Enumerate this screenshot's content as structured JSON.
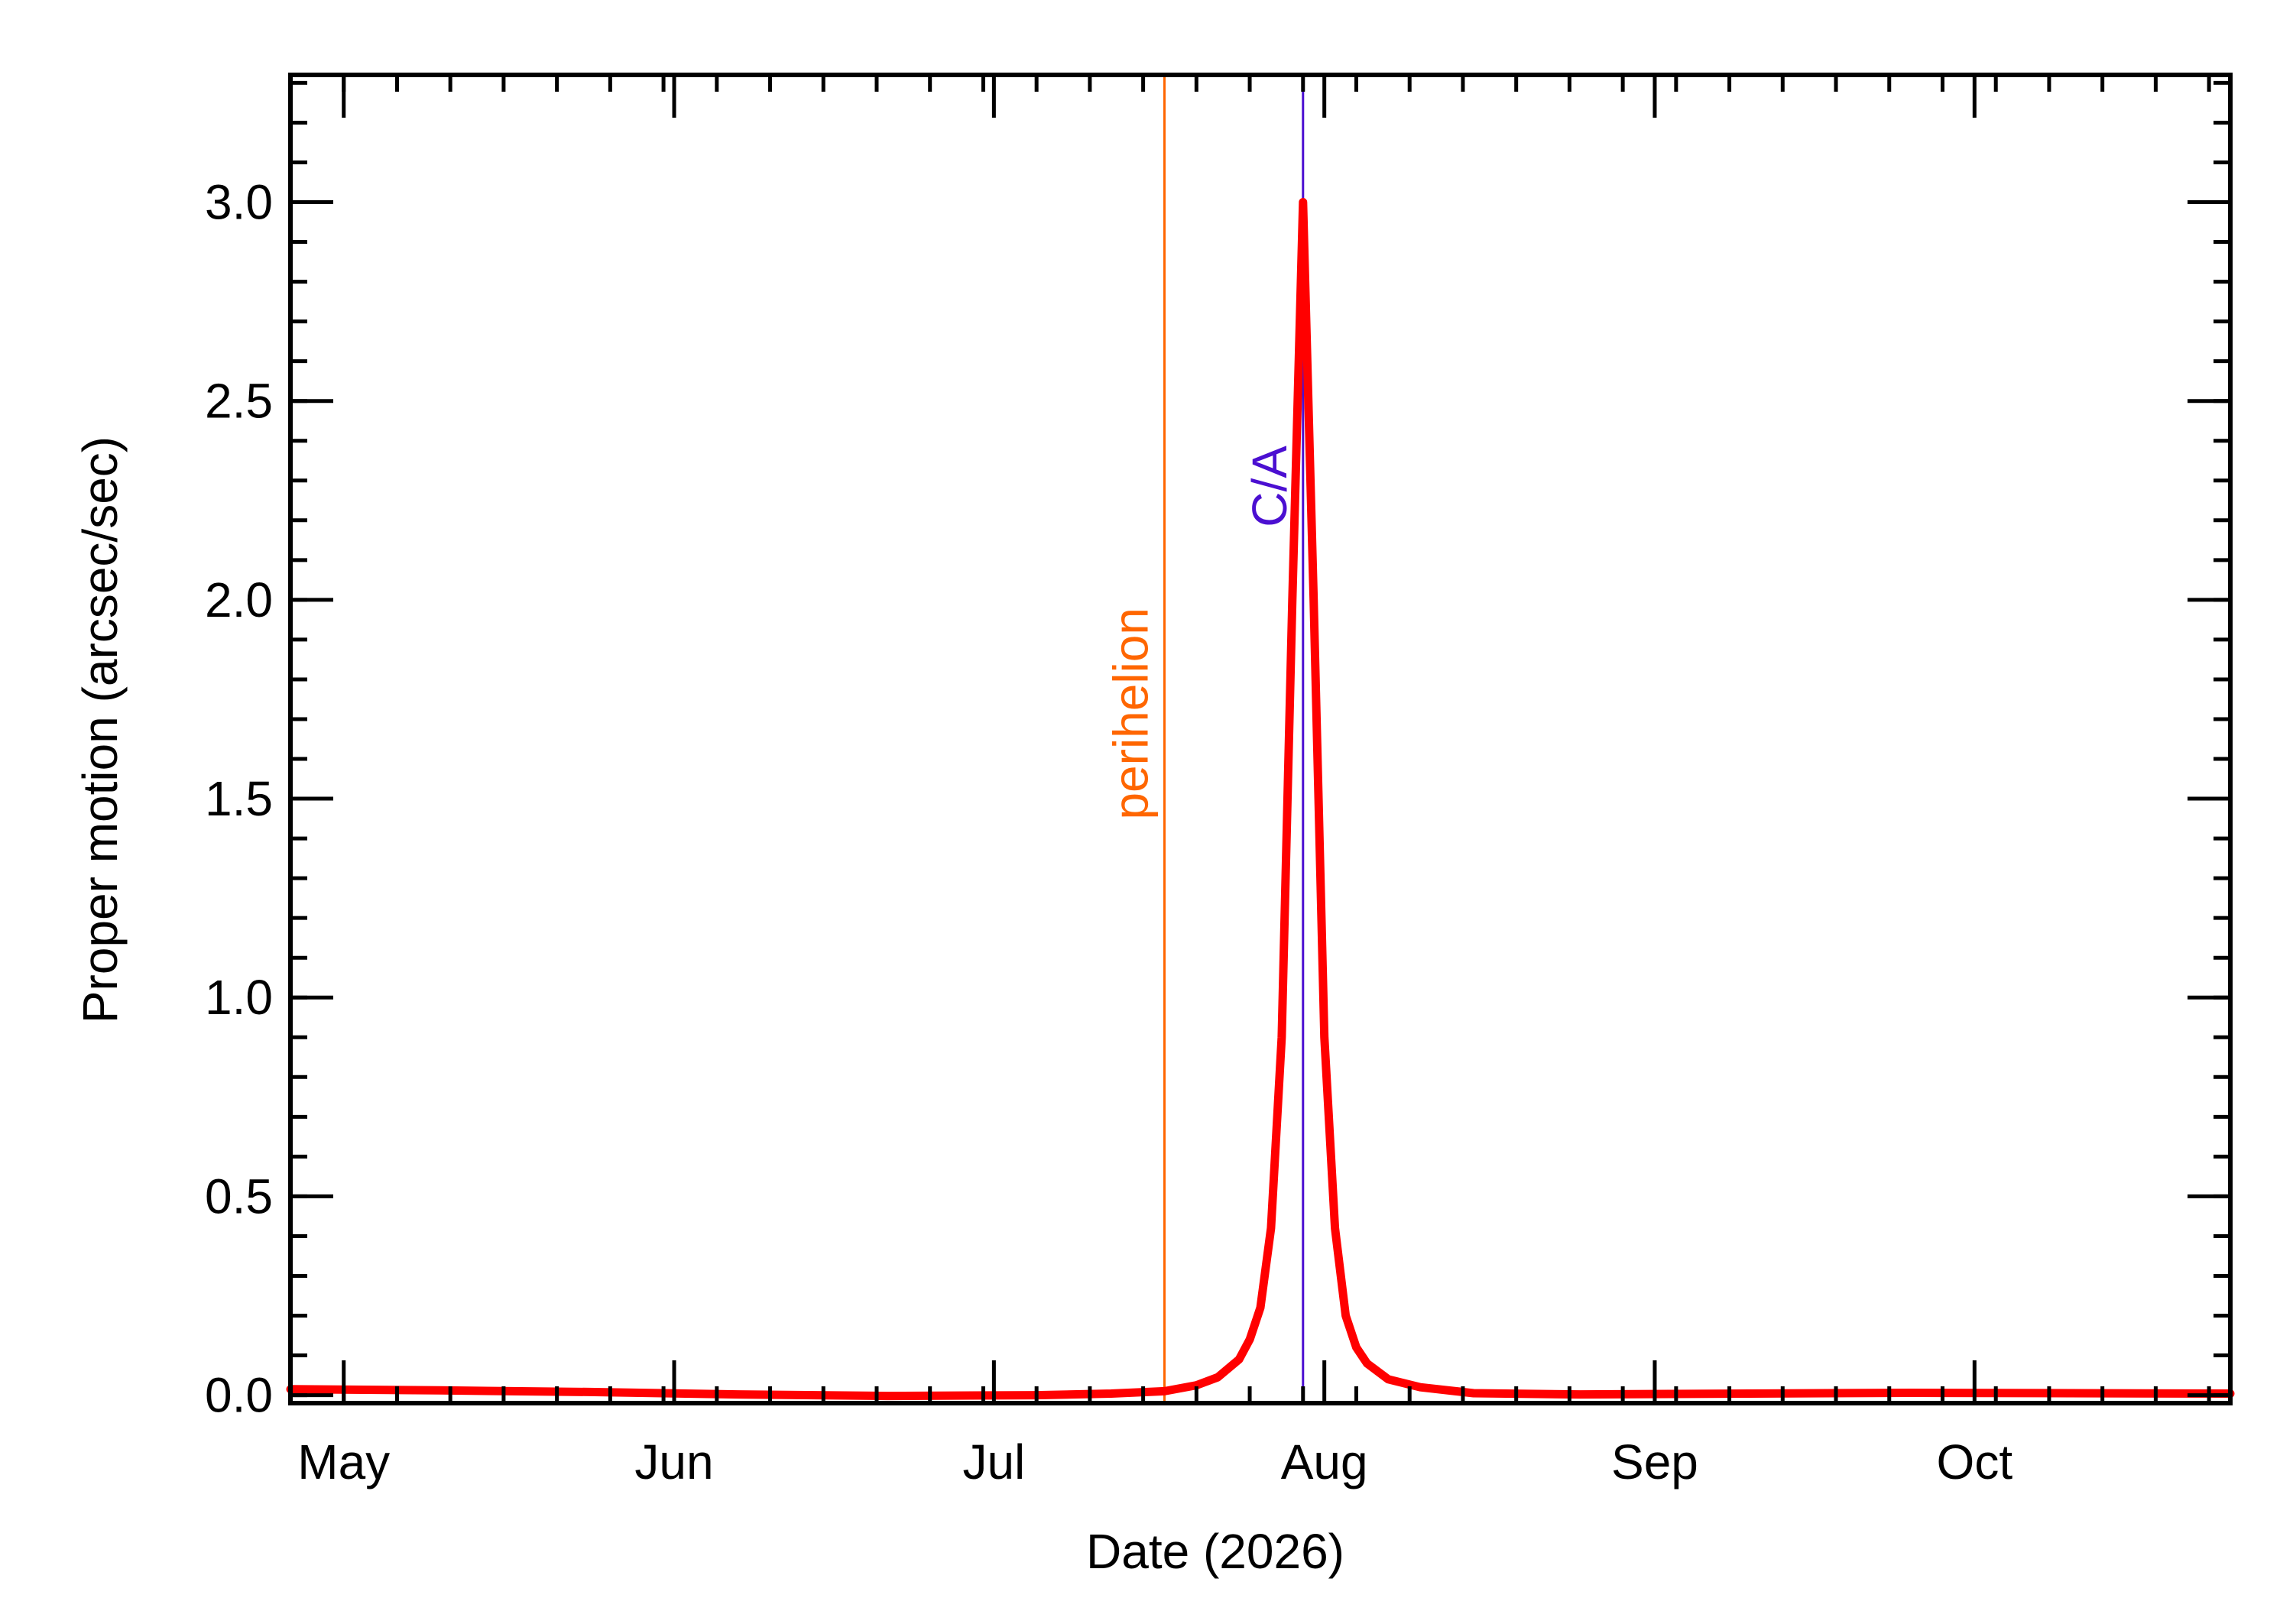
{
  "chart_data": {
    "type": "line",
    "title": "",
    "xlabel": "Date (2026)",
    "ylabel": "Proper motion (arcsec/sec)",
    "x_range": [
      "2026-04-26",
      "2026-10-25"
    ],
    "ylim": [
      -0.02,
      3.32
    ],
    "grid": false,
    "x_tick_labels": [
      {
        "label": "May",
        "date": "2026-05-01"
      },
      {
        "label": "Jun",
        "date": "2026-06-01"
      },
      {
        "label": "Jul",
        "date": "2026-07-01"
      },
      {
        "label": "Aug",
        "date": "2026-08-01"
      },
      {
        "label": "Sep",
        "date": "2026-09-01"
      },
      {
        "label": "Oct",
        "date": "2026-10-01"
      }
    ],
    "y_ticks": [
      {
        "label": "0.0",
        "value": 0.0
      },
      {
        "label": "0.5",
        "value": 0.5
      },
      {
        "label": "1.0",
        "value": 1.0
      },
      {
        "label": "1.5",
        "value": 1.5
      },
      {
        "label": "2.0",
        "value": 2.0
      },
      {
        "label": "2.5",
        "value": 2.5
      },
      {
        "label": "3.0",
        "value": 3.0
      }
    ],
    "markers": [
      {
        "label": "perihelion",
        "date": "2026-07-17",
        "color": "#ff6600"
      },
      {
        "label": "C/A",
        "date": "2026-07-30",
        "color": "#4b0fd1"
      }
    ],
    "series": [
      {
        "color": "#ff0000",
        "points": [
          [
            "2026-04-26",
            0.015
          ],
          [
            "2026-05-10",
            0.012
          ],
          [
            "2026-05-24",
            0.008
          ],
          [
            "2026-06-07",
            0.002
          ],
          [
            "2026-06-21",
            -0.002
          ],
          [
            "2026-07-05",
            0.0
          ],
          [
            "2026-07-12",
            0.004
          ],
          [
            "2026-07-17",
            0.01
          ],
          [
            "2026-07-20",
            0.025
          ],
          [
            "2026-07-22",
            0.045
          ],
          [
            "2026-07-24",
            0.09
          ],
          [
            "2026-07-25",
            0.14
          ],
          [
            "2026-07-26",
            0.22
          ],
          [
            "2026-07-27",
            0.42
          ],
          [
            "2026-07-28",
            0.9
          ],
          [
            "2026-07-29",
            2.0
          ],
          [
            "2026-07-30",
            3.0
          ],
          [
            "2026-07-31",
            2.0
          ],
          [
            "2026-08-01",
            0.9
          ],
          [
            "2026-08-02",
            0.42
          ],
          [
            "2026-08-03",
            0.2
          ],
          [
            "2026-08-04",
            0.12
          ],
          [
            "2026-08-05",
            0.08
          ],
          [
            "2026-08-07",
            0.04
          ],
          [
            "2026-08-10",
            0.02
          ],
          [
            "2026-08-15",
            0.005
          ],
          [
            "2026-08-25",
            0.002
          ],
          [
            "2026-09-10",
            0.004
          ],
          [
            "2026-09-25",
            0.006
          ],
          [
            "2026-10-10",
            0.005
          ],
          [
            "2026-10-25",
            0.004
          ]
        ]
      }
    ]
  }
}
